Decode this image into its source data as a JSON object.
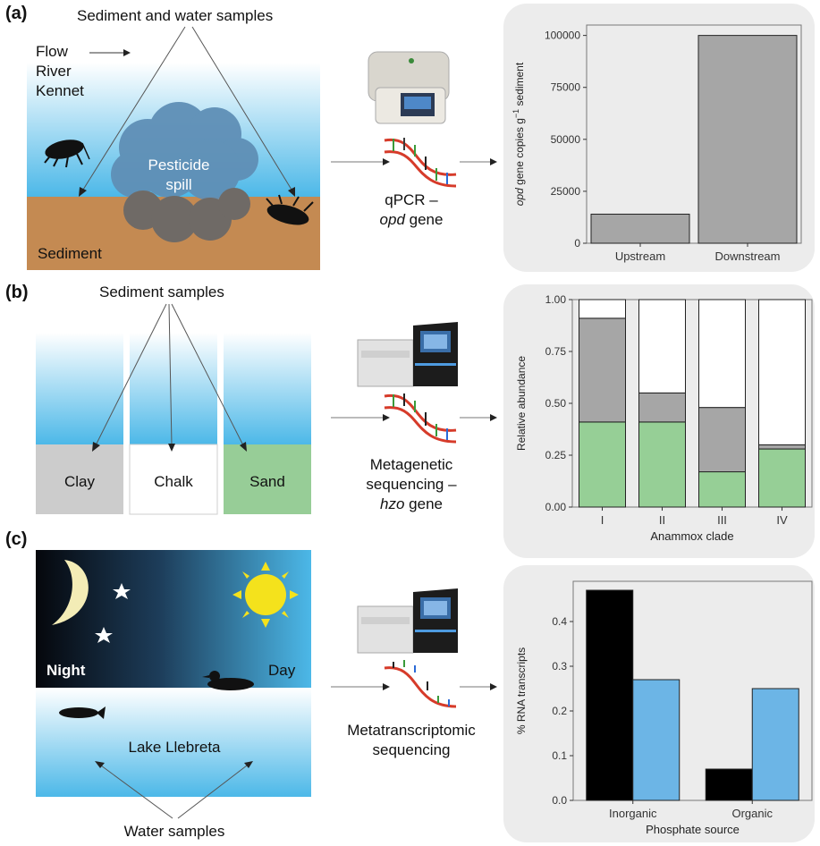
{
  "panels": [
    {
      "id": "a",
      "label": "(a)",
      "header": "Sediment and water samples",
      "flow_label": "Flow",
      "river_label": "River",
      "river_name": "Kennet",
      "spill_label_1": "Pesticide",
      "spill_label_2": "spill",
      "sediment_label": "Sediment",
      "method_line1": "qPCR –",
      "method_italic": "opd",
      "method_line2_suffix": " gene"
    },
    {
      "id": "b",
      "label": "(b)",
      "header": "Sediment samples",
      "sediments": [
        "Clay",
        "Chalk",
        "Sand"
      ],
      "method_line1": "Metagenetic",
      "method_line2": "sequencing –",
      "method_italic": "hzo",
      "method_line3_suffix": " gene"
    },
    {
      "id": "c",
      "label": "(c)",
      "night_label": "Night",
      "day_label": "Day",
      "lake_label": "Lake Llebreta",
      "water_label": "Water samples",
      "method_line1": "Metatranscriptomic",
      "method_line2": "sequencing"
    }
  ],
  "colors": {
    "water_top": "#ffffff",
    "water_bottom": "#4cb8e8",
    "sediment": "#c48a52",
    "clay": "#cccccc",
    "sand": "#97cd97",
    "bar_gray": "#a6a6a6",
    "bar_green": "#96cf96",
    "bar_blue": "#6cb5e6",
    "chart_bg": "#ececec"
  },
  "chart_data": [
    {
      "type": "bar",
      "categories": [
        "Upstream",
        "Downstream"
      ],
      "values": [
        14000,
        100000
      ],
      "ylabel_prefix": "opd",
      "ylabel_mid": " gene copies g",
      "ylabel_sup": "−1",
      "ylabel_suffix": " sediment",
      "yticks": [
        "0",
        "25000",
        "50000",
        "75000",
        "100000"
      ],
      "ylim": [
        0,
        105000
      ],
      "grid": false
    },
    {
      "type": "bar",
      "stacked": true,
      "categories": [
        "I",
        "II",
        "III",
        "IV"
      ],
      "series": [
        {
          "values": [
            0.41,
            0.41,
            0.17,
            0.28
          ],
          "color": "#96cf96"
        },
        {
          "values": [
            0.5,
            0.14,
            0.31,
            0.02
          ],
          "color": "#a6a6a6"
        },
        {
          "values": [
            0.09,
            0.45,
            0.52,
            0.7
          ],
          "color": "#ffffff"
        }
      ],
      "xlabel": "Anammox clade",
      "ylabel": "Relative abundance",
      "yticks": [
        "0.00",
        "0.25",
        "0.50",
        "0.75",
        "1.00"
      ],
      "ylim": [
        0,
        1.0
      ],
      "grid": false
    },
    {
      "type": "bar",
      "categories": [
        "Inorganic",
        "Organic"
      ],
      "series": [
        {
          "values": [
            0.47,
            0.07
          ],
          "color": "#000000"
        },
        {
          "values": [
            0.27,
            0.25
          ],
          "color": "#6cb5e6"
        }
      ],
      "xlabel": "Phosphate source",
      "ylabel": "% RNA transcripts",
      "yticks": [
        "0.0",
        "0.1",
        "0.2",
        "0.3",
        "0.4"
      ],
      "ylim": [
        0,
        0.49
      ],
      "grid": false
    }
  ]
}
